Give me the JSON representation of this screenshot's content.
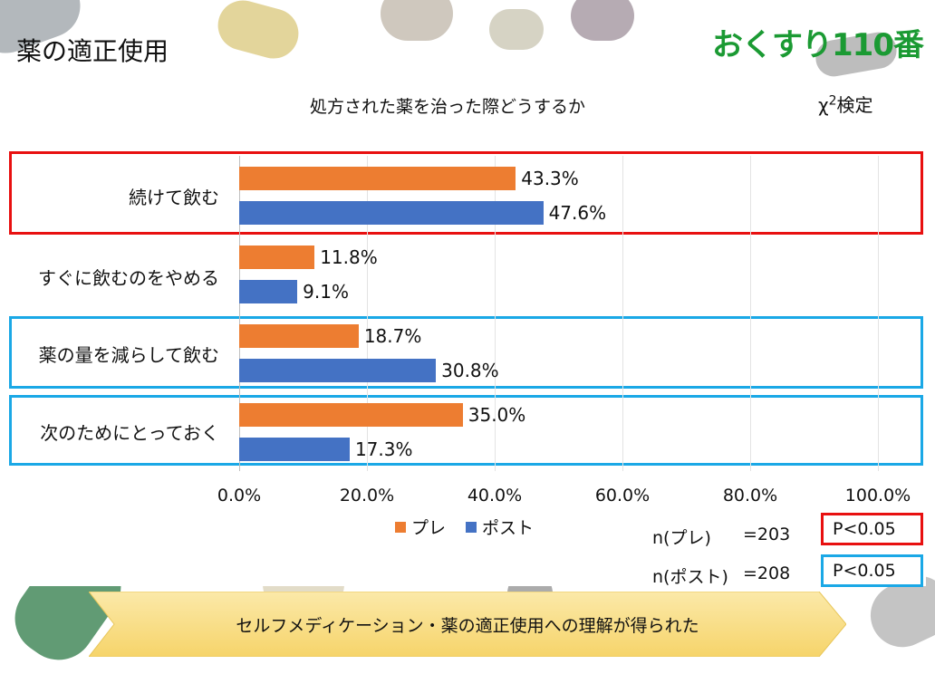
{
  "slide_title": "薬の適正使用",
  "brand": "おくすり110番",
  "test_label_main": "χ",
  "test_label_sup": "2",
  "test_label_rest": "検定",
  "colors": {
    "pre": "#ed7d31",
    "post": "#4472c4",
    "red_box": "#e81010",
    "blue_box": "#1aa8e6",
    "brand": "#1b9a33"
  },
  "chart_data": {
    "type": "bar",
    "orientation": "horizontal",
    "title": "処方された薬を治った際どうするか",
    "categories": [
      "続けて飲む",
      "すぐに飲むのをやめる",
      "薬の量を減らして飲む",
      "次のためにとっておく"
    ],
    "series": [
      {
        "name": "プレ",
        "values": [
          43.3,
          11.8,
          18.7,
          35.0
        ],
        "labels": [
          "43.3%",
          "11.8%",
          "18.7%",
          "35.0%"
        ]
      },
      {
        "name": "ポスト",
        "values": [
          47.6,
          9.1,
          30.8,
          17.3
        ],
        "labels": [
          "47.6%",
          "9.1%",
          "30.8%",
          "17.3%"
        ]
      }
    ],
    "xlim": [
      0,
      100
    ],
    "xticks": [
      "0.0%",
      "20.0%",
      "40.0%",
      "60.0%",
      "80.0%",
      "100.0%"
    ],
    "grid": true,
    "legend_position": "bottom"
  },
  "stats": {
    "pre_n_label": "n(プレ)",
    "pre_n_value": "=203",
    "post_n_label": "n(ポスト)",
    "post_n_value": "=208",
    "p_red": "P<0.05",
    "p_blue": "P<0.05"
  },
  "banner_text": "セルフメディケーション・薬の適正使用への理解が得られた"
}
